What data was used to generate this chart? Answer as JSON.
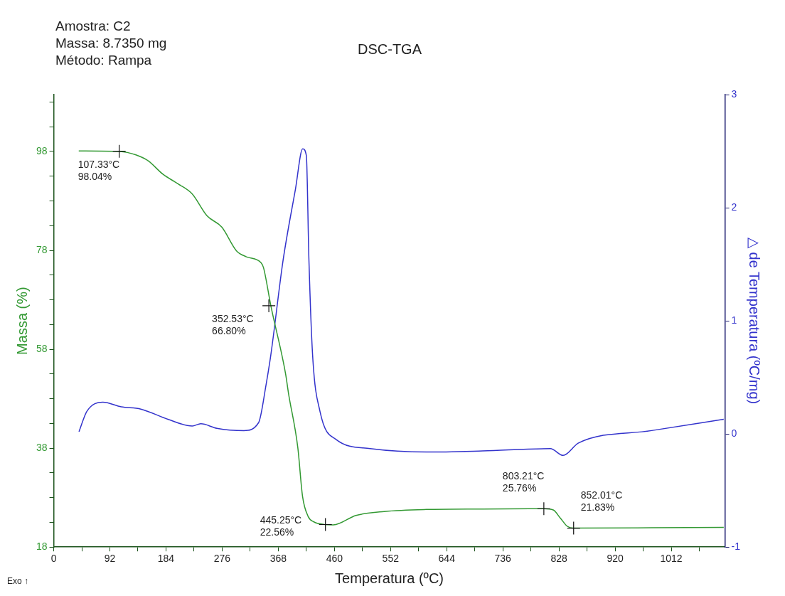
{
  "chart_data": {
    "type": "line",
    "title": "DSC-TGA",
    "subtitle": "Amostra: C2\nMassa: 8.7350 mg\nMétodo: Rampa",
    "xlabel": "Temperatura (ºC)",
    "ylabel": "Massa (%)",
    "y2label": "△ de Temperatura (ºC/mg)",
    "xlim": [
      0,
      1100
    ],
    "xticks": [
      0,
      {
        "value": 46,
        "label": null
      },
      92,
      {
        "value": 138,
        "label": null
      },
      184,
      {
        "value": 230,
        "label": null
      },
      276,
      {
        "value": 322,
        "label": null
      },
      368,
      {
        "value": 414,
        "label": null
      },
      460,
      {
        "value": 506,
        "label": null
      },
      552,
      {
        "value": 598,
        "label": null
      },
      644,
      {
        "value": 690,
        "label": null
      },
      736,
      {
        "value": 782,
        "label": null
      },
      828,
      {
        "value": 874,
        "label": null
      },
      920,
      {
        "value": 966,
        "label": null
      },
      1012,
      {
        "value": 1058,
        "label": null
      }
    ],
    "ylim": [
      18,
      109.5
    ],
    "yticks": [
      18,
      {
        "value": 23,
        "label": null
      },
      {
        "value": 28,
        "label": null
      },
      {
        "value": 33,
        "label": null
      },
      38,
      {
        "value": 43,
        "label": null
      },
      {
        "value": 48,
        "label": null
      },
      {
        "value": 53,
        "label": null
      },
      58,
      {
        "value": 63,
        "label": null
      },
      {
        "value": 68,
        "label": null
      },
      {
        "value": 73,
        "label": null
      },
      78,
      {
        "value": 83,
        "label": null
      },
      {
        "value": 88,
        "label": null
      },
      {
        "value": 93,
        "label": null
      },
      98,
      {
        "value": 103,
        "label": null
      },
      {
        "value": 108,
        "label": null
      }
    ],
    "y2lim": [
      -1,
      3
    ],
    "y2ticks": [
      -1,
      0,
      1,
      2,
      3
    ],
    "series": [
      {
        "color": "#339933",
        "x": [
          41,
          108.6,
          134.7,
          154.8,
          178.9,
          203,
          227,
          251,
          275.4,
          299.5,
          315.7,
          339.8,
          343.8,
          355.8,
          380,
          384.6,
          400,
          407.7,
          416.9,
          426.2,
          445.3,
          458.4,
          495.3,
          541.6,
          610.8,
          703,
          803.2,
          818.6,
          830,
          841.6,
          852,
          980,
          1098
        ],
        "values": [
          98.1,
          98.0,
          97.3,
          96.1,
          93.4,
          91.5,
          89.4,
          85.0,
          82.7,
          77.9,
          76.7,
          75.5,
          74.5,
          66.8,
          53.0,
          49.2,
          38.1,
          28.3,
          24.2,
          23.1,
          22.56,
          22.5,
          24.4,
          25.2,
          25.6,
          25.7,
          25.76,
          25.5,
          23.9,
          22.2,
          21.83,
          21.9,
          22.0
        ]
      },
      {
        "color": "#3333cc",
        "axis": "y2",
        "x": [
          41.4,
          54.3,
          80.4,
          110.6,
          142.7,
          187,
          227,
          241,
          267.4,
          311.6,
          335.7,
          347.8,
          355.8,
          376,
          396,
          408,
          414,
          418.2,
          424.2,
          436.3,
          463,
          518.5,
          610.8,
          703,
          813.9,
          834.8,
          860,
          980,
          1098
        ],
        "values": [
          0.02,
          0.2,
          0.28,
          0.24,
          0.22,
          0.13,
          0.07,
          0.09,
          0.05,
          0.03,
          0.1,
          0.43,
          0.7,
          1.54,
          2.16,
          2.52,
          2.46,
          1.54,
          0.7,
          0.2,
          -0.05,
          -0.13,
          -0.16,
          -0.15,
          -0.13,
          -0.19,
          -0.08,
          0.03,
          0.13
        ]
      }
    ],
    "annotations": [
      {
        "text": "107.33°C\n98.04%",
        "x": 107.33,
        "y": 98.04
      },
      {
        "text": "352.53°C\n66.80%",
        "x": 352.53,
        "y": 66.8
      },
      {
        "text": "445.25°C\n22.56%",
        "x": 445.25,
        "y": 22.56
      },
      {
        "text": "803.21°C\n25.76%",
        "x": 803.21,
        "y": 25.76
      },
      {
        "text": "852.01°C\n21.83%",
        "x": 852.01,
        "y": 21.83
      },
      "Exo ↑"
    ]
  }
}
